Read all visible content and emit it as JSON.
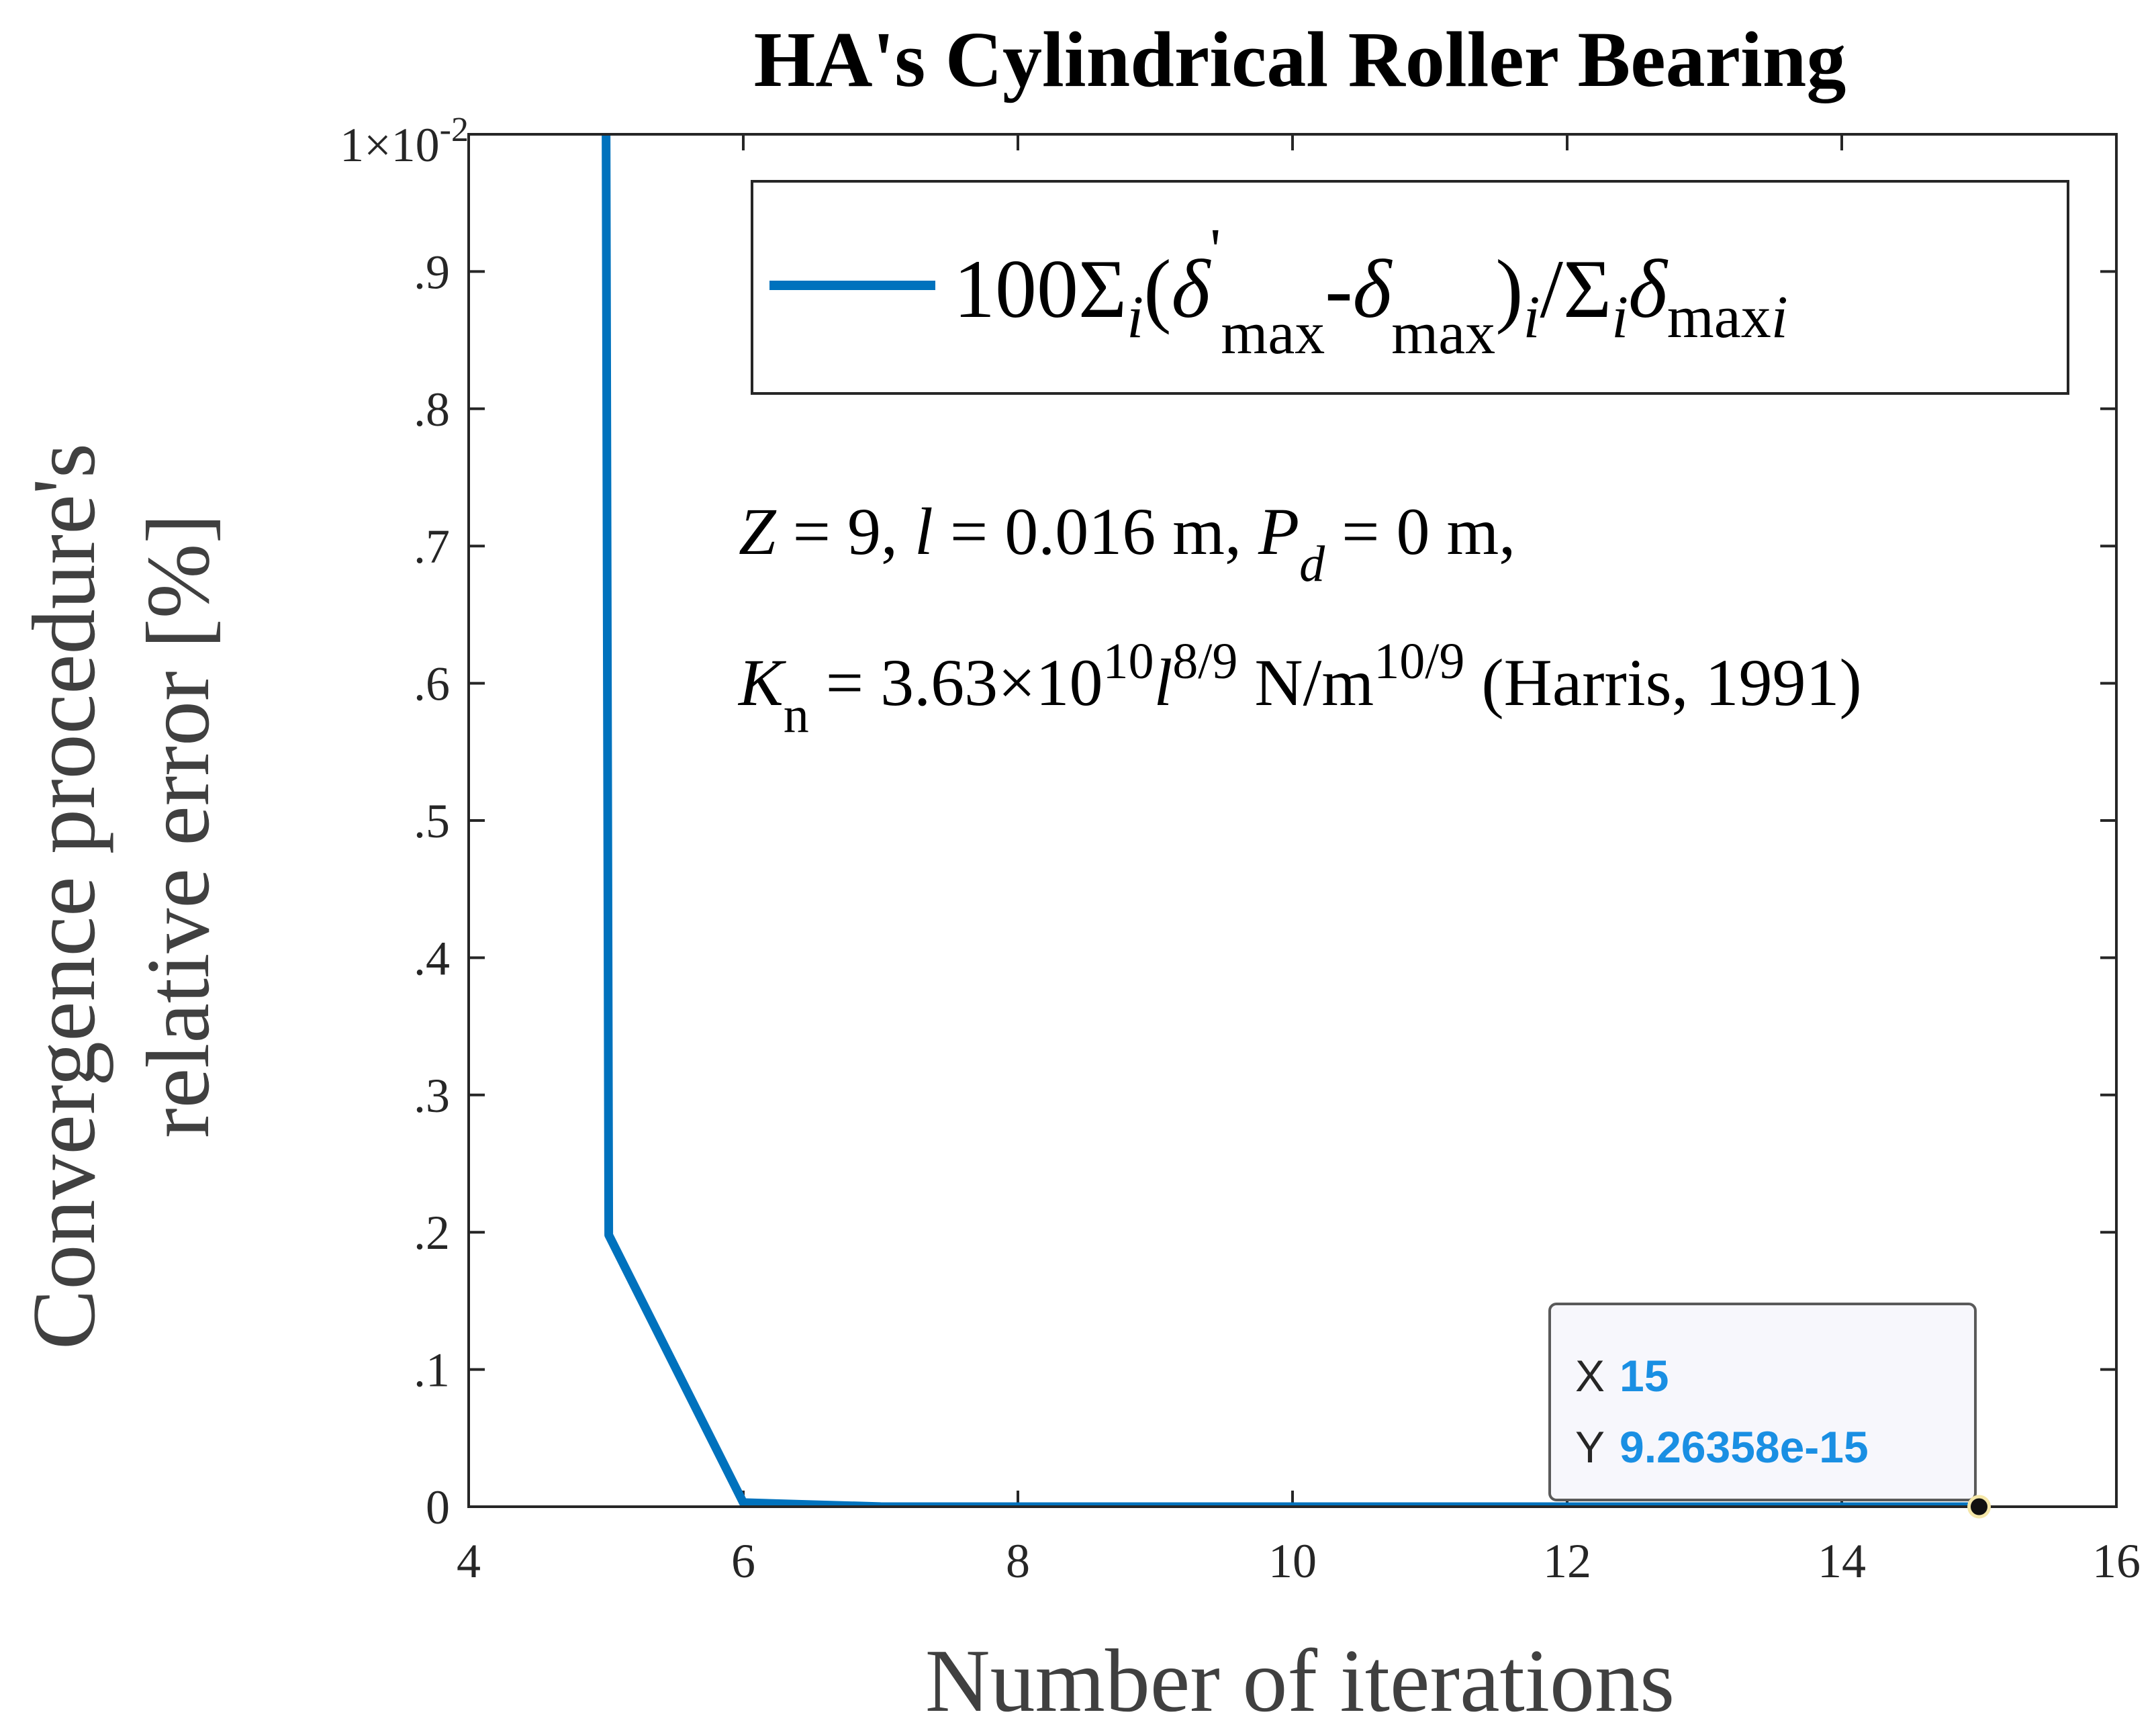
{
  "chart_data": {
    "type": "line",
    "title": "HA's Cylindrical Roller Bearing",
    "xlabel": "Number of iterations",
    "ylabel_line1": "Convergence procedure's",
    "ylabel_line2": "relative error  [%]",
    "xlim": [
      4,
      16
    ],
    "ylim": [
      0,
      0.01
    ],
    "y_exponent_label": {
      "mantissa": "1",
      "times": "×",
      "base": "10",
      "exponent": "-2"
    },
    "xticks": [
      4,
      6,
      8,
      10,
      12,
      14,
      16
    ],
    "xtick_labels": [
      "4",
      "6",
      "8",
      "10",
      "12",
      "14",
      "16"
    ],
    "yticks": [
      0,
      0.001,
      0.002,
      0.003,
      0.004,
      0.005,
      0.006,
      0.007,
      0.008,
      0.009
    ],
    "ytick_labels": [
      "0",
      ".1",
      ".2",
      ".3",
      ".4",
      ".5",
      ".6",
      ".7",
      ".8",
      ".9"
    ],
    "grid": false,
    "legend_position": "top-right",
    "series": [
      {
        "name": "100Σi(δ'max-δmax)i/Σiδmaxi",
        "color": "#0072BD",
        "x": [
          5,
          5.02,
          6,
          7,
          8,
          9,
          10,
          11,
          12,
          13,
          14,
          15
        ],
        "y": [
          0.0103,
          0.00198,
          3e-05,
          5e-07,
          0,
          0,
          0,
          0,
          0,
          0,
          0,
          9.26358e-15
        ]
      }
    ],
    "legend_parts": {
      "coef": "100",
      "sigma": "Σ",
      "i": "i",
      "open": "(",
      "delta": "δ",
      "prime": "'",
      "max": "max",
      "minus": "-",
      "close": ")",
      "slash": "/"
    },
    "annotations": {
      "line1": {
        "Z": "Z",
        "eq_z": " = 9, ",
        "l": "l",
        "eq_l": " = 0.016 m, ",
        "P": "P",
        "d": "d",
        "eq_p": " = 0 m,"
      },
      "line2": {
        "K": "K",
        "n": "n",
        "eq_k": " = 3.63×10",
        "exp10": "10",
        "l": "l",
        "exp89": "8/9",
        "unit": " N/m",
        "exp109": "10/9",
        "cite": " (Harris, 1991)"
      }
    },
    "datatip": {
      "x_label": "X",
      "x_value": "15",
      "y_label": "Y",
      "y_value": "9.26358e-15",
      "x": 15,
      "y": 9.26358e-15
    }
  }
}
